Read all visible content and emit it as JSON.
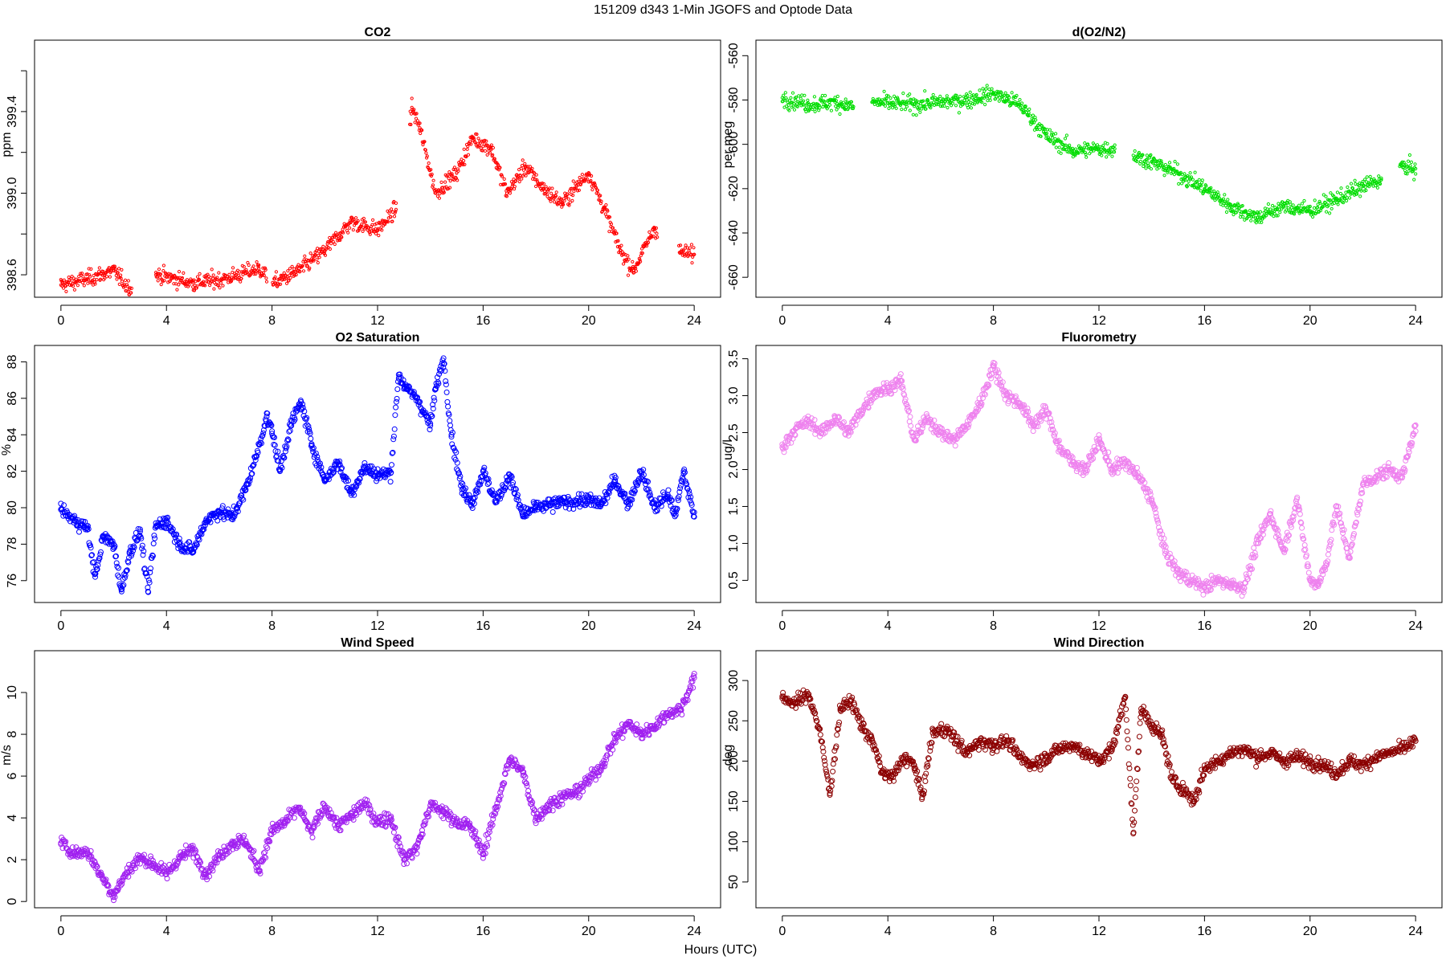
{
  "figure": {
    "title": "151209   d343   1-Min  JGOFS and Optode Data",
    "xlabel": "Hours (UTC)"
  },
  "chart_data": [
    {
      "type": "scatter",
      "id": "co2",
      "title": "CO2",
      "ylabel": "ppm",
      "color": "#ff0000",
      "marker_size": "small",
      "xlim": [
        -1,
        25
      ],
      "ylim": [
        398.49,
        399.75
      ],
      "xticks": [
        0,
        4,
        8,
        12,
        16,
        20,
        24
      ],
      "yticks": [
        398.6,
        399.0,
        399.4
      ],
      "ytick_labels": [
        "398.6",
        "399.0",
        "399.4"
      ],
      "minor_yticks": [
        398.8,
        399.2,
        399.6
      ],
      "gaps": [
        [
          2.7,
          3.6
        ],
        [
          7.8,
          8.0
        ],
        [
          12.7,
          13.2
        ],
        [
          22.6,
          23.4
        ]
      ],
      "series": [
        {
          "name": "CO2",
          "x": [
            0,
            1,
            2,
            2.6,
            3.6,
            5,
            6.2,
            7.5,
            8.1,
            9,
            10,
            11,
            12,
            12.7,
            13.3,
            13.6,
            14.2,
            15,
            15.6,
            16.3,
            16.9,
            17.6,
            18.3,
            19,
            20,
            20.6,
            21.2,
            21.7,
            22.5,
            23.5,
            24
          ],
          "y": [
            398.55,
            398.58,
            398.62,
            398.53,
            398.6,
            398.56,
            398.58,
            398.63,
            398.56,
            398.62,
            398.72,
            398.86,
            398.82,
            398.92,
            399.42,
            399.32,
            399.0,
            399.1,
            399.27,
            399.22,
            399.0,
            399.13,
            399.02,
            398.95,
            399.1,
            398.92,
            398.72,
            398.62,
            398.83,
            398.71,
            398.7
          ]
        }
      ]
    },
    {
      "type": "scatter",
      "id": "do2n2",
      "title": "d(O2/N2)",
      "ylabel": "per meg",
      "color": "#00dd00",
      "marker_size": "small",
      "xlim": [
        -1,
        25
      ],
      "ylim": [
        -669,
        -553
      ],
      "xticks": [
        0,
        4,
        8,
        12,
        16,
        20,
        24
      ],
      "yticks": [
        -660,
        -640,
        -620,
        -600,
        -580,
        -560
      ],
      "ytick_labels": [
        "-660",
        "-640",
        "-620",
        "-600",
        "-580",
        "-560"
      ],
      "gaps": [
        [
          2.7,
          3.4
        ],
        [
          12.6,
          13.3
        ],
        [
          22.7,
          23.4
        ]
      ],
      "series": [
        {
          "name": "d(O2/N2)",
          "x": [
            0,
            1,
            2,
            2.7,
            3.4,
            5,
            7,
            8,
            9,
            10,
            11,
            12,
            12.6,
            13.3,
            14,
            15,
            16,
            17,
            18,
            19,
            20,
            21,
            22,
            22.7,
            23.4,
            24
          ],
          "y": [
            -579,
            -582,
            -581,
            -583,
            -581,
            -582,
            -580,
            -577,
            -582,
            -596,
            -603,
            -602,
            -602,
            -605,
            -608,
            -613,
            -620,
            -628,
            -633,
            -628,
            -630,
            -625,
            -619,
            -616,
            -610,
            -611
          ]
        }
      ]
    },
    {
      "type": "scatter",
      "id": "o2sat",
      "title": "O2 Saturation",
      "ylabel": "%",
      "color": "#0000ff",
      "marker_size": "large",
      "xlim": [
        -1,
        25
      ],
      "ylim": [
        74.8,
        88.9
      ],
      "xticks": [
        0,
        4,
        8,
        12,
        16,
        20,
        24
      ],
      "yticks": [
        76,
        78,
        80,
        82,
        84,
        86,
        88
      ],
      "ytick_labels": [
        "76",
        "78",
        "80",
        "82",
        "84",
        "86",
        "88"
      ],
      "gaps": [],
      "series": [
        {
          "name": "O2 Saturation",
          "x": [
            0,
            0.5,
            1,
            1.3,
            1.6,
            2,
            2.3,
            2.6,
            3,
            3.3,
            3.6,
            4,
            4.5,
            5,
            5.5,
            6,
            6.5,
            7,
            7.4,
            7.8,
            8,
            8.3,
            8.7,
            9.1,
            9.5,
            10,
            10.5,
            11,
            11.5,
            12,
            12.5,
            12.8,
            13.1,
            13.5,
            14,
            14.2,
            14.5,
            14.8,
            15.2,
            15.6,
            16,
            16.5,
            17,
            17.5,
            18,
            19,
            20,
            20.5,
            21,
            21.5,
            22,
            22.5,
            23,
            23.3,
            23.6,
            24
          ],
          "y": [
            79.9,
            79.3,
            78.9,
            76.2,
            78.4,
            78.0,
            75.4,
            77.5,
            78.7,
            75.4,
            79.0,
            79.3,
            78.0,
            77.6,
            79.3,
            79.8,
            79.5,
            81.0,
            82.8,
            85.0,
            84.2,
            82.0,
            84.5,
            85.8,
            83.5,
            81.5,
            82.5,
            80.8,
            82.2,
            81.8,
            81.9,
            87.3,
            86.5,
            86.0,
            84.5,
            86.5,
            88.2,
            84.0,
            81.0,
            80.3,
            82.0,
            80.3,
            81.8,
            79.6,
            80.0,
            80.3,
            80.4,
            80.2,
            81.5,
            80.2,
            82.0,
            80.0,
            80.7,
            79.6,
            82.0,
            79.5
          ]
        }
      ]
    },
    {
      "type": "scatter",
      "id": "fluor",
      "title": "Fluorometry",
      "ylabel": "ug/l",
      "color": "#ee82ee",
      "marker_size": "large",
      "xlim": [
        -1,
        25
      ],
      "ylim": [
        0.2,
        3.68
      ],
      "xticks": [
        0,
        4,
        8,
        12,
        16,
        20,
        24
      ],
      "yticks": [
        0.5,
        1.0,
        1.5,
        2.0,
        2.5,
        3.0,
        3.5
      ],
      "ytick_labels": [
        "0.5",
        "1.0",
        "1.5",
        "2.0",
        "2.5",
        "3.0",
        "3.5"
      ],
      "gaps": [],
      "series": [
        {
          "name": "Fluorometry",
          "x": [
            0,
            0.5,
            1,
            1.5,
            2,
            2.5,
            3,
            3.5,
            4,
            4.5,
            5,
            5.5,
            6,
            6.5,
            7,
            7.5,
            8,
            8.5,
            9,
            9.5,
            10,
            10.5,
            11,
            11.5,
            12,
            12.5,
            13,
            13.5,
            14,
            14.5,
            15,
            15.5,
            16,
            16.5,
            17,
            17.5,
            18,
            18.5,
            19,
            19.5,
            20,
            20.3,
            20.6,
            21,
            21.5,
            22,
            22.5,
            23,
            23.5,
            24
          ],
          "y": [
            2.3,
            2.55,
            2.65,
            2.5,
            2.7,
            2.5,
            2.8,
            3.05,
            3.1,
            3.2,
            2.4,
            2.7,
            2.5,
            2.4,
            2.6,
            2.9,
            3.4,
            3.0,
            2.9,
            2.6,
            2.8,
            2.3,
            2.1,
            2.0,
            2.4,
            2.0,
            2.1,
            1.9,
            1.6,
            0.9,
            0.6,
            0.5,
            0.4,
            0.5,
            0.45,
            0.4,
            1.0,
            1.4,
            0.9,
            1.6,
            0.5,
            0.45,
            0.7,
            1.5,
            0.8,
            1.8,
            1.9,
            2.0,
            1.9,
            2.6
          ]
        }
      ]
    },
    {
      "type": "scatter",
      "id": "windspeed",
      "title": "Wind Speed",
      "ylabel": "m/s",
      "color": "#a020f0",
      "marker_size": "large",
      "xlim": [
        -1,
        25
      ],
      "ylim": [
        -0.3,
        12.0
      ],
      "xticks": [
        0,
        4,
        8,
        12,
        16,
        20,
        24
      ],
      "yticks": [
        0,
        2,
        4,
        6,
        8,
        10
      ],
      "ytick_labels": [
        "0",
        "2",
        "4",
        "6",
        "8",
        "10"
      ],
      "gaps": [],
      "series": [
        {
          "name": "Wind Speed",
          "x": [
            0,
            0.5,
            1,
            1.5,
            2,
            2.5,
            3,
            3.5,
            4,
            4.5,
            5,
            5.5,
            6,
            6.5,
            7,
            7.5,
            8,
            8.5,
            9,
            9.5,
            10,
            10.5,
            11,
            11.5,
            12,
            12.5,
            13,
            13.5,
            14,
            14.5,
            15,
            15.5,
            16,
            16.5,
            17,
            17.5,
            18,
            18.5,
            19,
            19.5,
            20,
            20.5,
            21,
            21.5,
            22,
            22.5,
            23,
            23.5,
            24
          ],
          "y": [
            2.8,
            2.3,
            2.4,
            1.3,
            0.3,
            1.4,
            2.1,
            1.8,
            1.3,
            2.1,
            2.5,
            1.3,
            2.2,
            2.8,
            2.9,
            1.5,
            3.4,
            3.8,
            4.5,
            3.3,
            4.6,
            3.6,
            4.1,
            4.7,
            3.8,
            4.0,
            2.0,
            2.6,
            4.6,
            4.3,
            3.8,
            3.6,
            2.3,
            4.5,
            6.8,
            6.2,
            4.0,
            4.6,
            5.0,
            5.2,
            5.8,
            6.5,
            7.8,
            8.5,
            8.0,
            8.4,
            9.0,
            9.2,
            10.7
          ]
        }
      ]
    },
    {
      "type": "scatter",
      "id": "winddir",
      "title": "Wind Direction",
      "ylabel": "deg",
      "color": "#8b0000",
      "marker_size": "large",
      "xlim": [
        -1,
        25
      ],
      "ylim": [
        18,
        337
      ],
      "xticks": [
        0,
        4,
        8,
        12,
        16,
        20,
        24
      ],
      "yticks": [
        50,
        100,
        150,
        200,
        250,
        300
      ],
      "ytick_labels": [
        "50",
        "100",
        "150",
        "200",
        "250",
        "300"
      ],
      "gaps": [],
      "series": [
        {
          "name": "Wind Direction",
          "x": [
            0,
            0.5,
            1,
            1.4,
            1.8,
            2.2,
            2.6,
            3,
            3.4,
            3.8,
            4.2,
            4.6,
            5,
            5.3,
            5.7,
            6.2,
            6.6,
            7,
            7.5,
            8,
            8.5,
            9,
            9.5,
            10,
            10.5,
            11,
            11.5,
            12,
            12.5,
            13,
            13.3,
            13.6,
            14,
            14.4,
            14.8,
            15.2,
            15.6,
            16,
            16.5,
            17,
            17.5,
            18,
            18.5,
            19,
            19.5,
            20,
            20.5,
            21,
            21.5,
            22,
            22.5,
            23,
            23.5,
            24
          ],
          "y": [
            278,
            272,
            283,
            240,
            160,
            265,
            275,
            245,
            225,
            185,
            180,
            205,
            195,
            155,
            235,
            240,
            225,
            210,
            225,
            220,
            225,
            205,
            195,
            205,
            215,
            220,
            210,
            200,
            215,
            280,
            110,
            265,
            245,
            230,
            175,
            165,
            150,
            190,
            200,
            210,
            215,
            205,
            210,
            200,
            205,
            200,
            195,
            185,
            200,
            195,
            205,
            210,
            215,
            225
          ]
        }
      ]
    }
  ]
}
